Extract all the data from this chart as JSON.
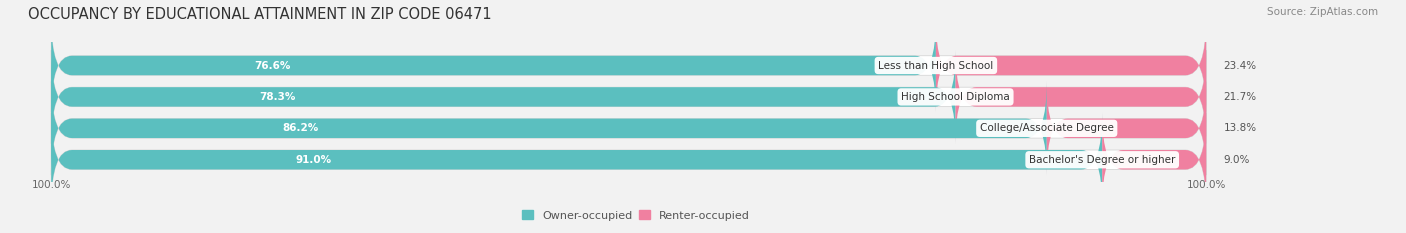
{
  "title": "OCCUPANCY BY EDUCATIONAL ATTAINMENT IN ZIP CODE 06471",
  "source": "Source: ZipAtlas.com",
  "categories": [
    "Less than High School",
    "High School Diploma",
    "College/Associate Degree",
    "Bachelor's Degree or higher"
  ],
  "owner_values": [
    76.6,
    78.3,
    86.2,
    91.0
  ],
  "renter_values": [
    23.4,
    21.7,
    13.8,
    9.0
  ],
  "owner_color": "#5bbfbf",
  "renter_color": "#f080a0",
  "bg_color": "#f2f2f2",
  "bar_bg_color": "#e8e8e8",
  "title_fontsize": 10.5,
  "source_fontsize": 7.5,
  "label_fontsize": 7.5,
  "legend_fontsize": 8,
  "axis_label_fontsize": 7.5,
  "bar_height": 0.62,
  "x_left_label": "100.0%",
  "x_right_label": "100.0%"
}
